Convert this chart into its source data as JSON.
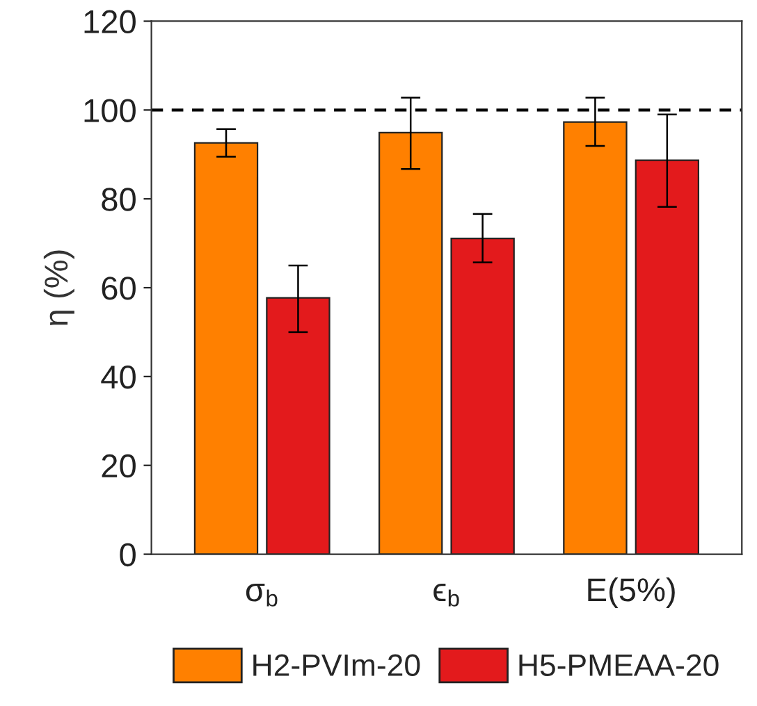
{
  "chart_data": {
    "type": "bar",
    "ylabel": "η (%)",
    "categories": [
      "σ$_{b}$",
      "ϵ$_{b}$",
      "E(5%)"
    ],
    "series": [
      {
        "name": "H2-PVIm-20",
        "color": "#ff8000",
        "values": [
          92.6,
          94.9,
          97.3
        ],
        "errors": [
          [
            89.5,
            95.7
          ],
          [
            86.7,
            102.8
          ],
          [
            91.9,
            102.8
          ]
        ]
      },
      {
        "name": "H5-PMEAA-20",
        "color": "#e31a1c",
        "values": [
          57.7,
          71.1,
          88.7
        ],
        "errors": [
          [
            50.0,
            65.0
          ],
          [
            65.7,
            76.6
          ],
          [
            78.2,
            99.0
          ]
        ]
      }
    ],
    "ylim": [
      0,
      120
    ],
    "yticks": [
      0,
      20,
      40,
      60,
      80,
      100,
      120
    ],
    "ref_lines": [
      {
        "axis": "y",
        "value": 100,
        "color": "#000000",
        "line_style": "dashed"
      }
    ],
    "grid": false,
    "legend": "bottom"
  }
}
